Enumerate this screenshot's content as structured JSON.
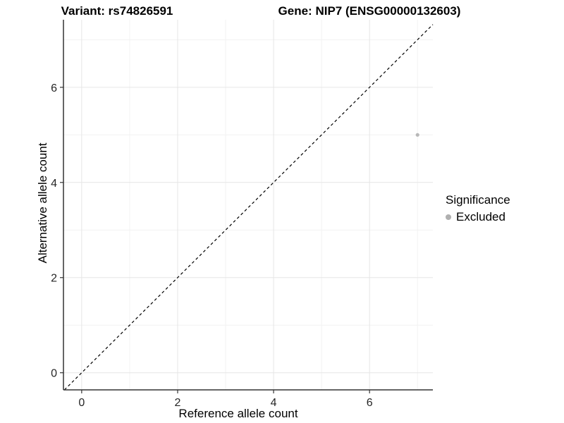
{
  "chart_data": {
    "type": "scatter",
    "title_left": "Variant: rs74826591",
    "title_right": "Gene: NIP7 (ENSG00000132603)",
    "xlabel": "Reference allele count",
    "ylabel": "Alternative allele count",
    "xlim": [
      -0.38,
      7.32
    ],
    "ylim": [
      -0.36,
      7.42
    ],
    "x_ticks": [
      0,
      2,
      4,
      6
    ],
    "y_ticks": [
      0,
      2,
      4,
      6
    ],
    "x_minor_ticks": [
      1,
      3,
      5,
      7
    ],
    "y_minor_ticks": [
      1,
      3,
      5,
      7
    ],
    "grid": "major+minor",
    "series": [
      {
        "name": "Excluded",
        "color": "#b8b8b8",
        "marker": "circle",
        "points": [
          {
            "x": 7,
            "y": 5
          }
        ]
      }
    ],
    "identity_line": {
      "equation": "y = x",
      "style": "dashed",
      "color": "#000000"
    },
    "legend": {
      "title": "Significance",
      "position": "right",
      "items": [
        {
          "label": "Excluded",
          "color": "#b0b0b0",
          "marker": "circle"
        }
      ]
    },
    "colors": {
      "background": "#ffffff",
      "grid_major": "#e6e6e6",
      "grid_minor": "#f2f2f2",
      "axis_line": "#333333",
      "tick_mark": "#333333",
      "tick_label": "#262626",
      "point": "#b8b8b8",
      "dashed_line": "#000000"
    }
  }
}
